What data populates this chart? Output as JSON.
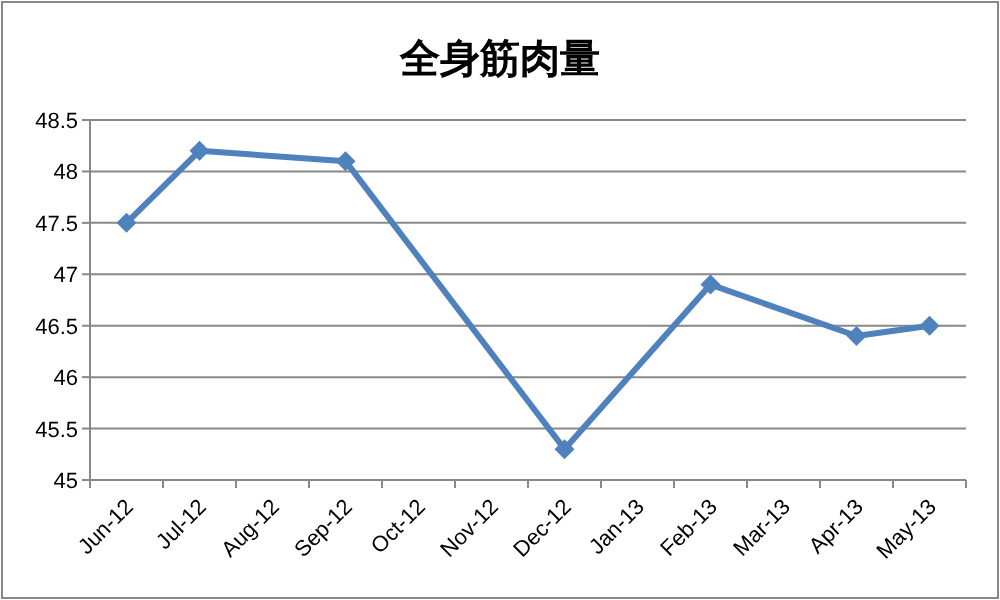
{
  "chart_data": {
    "type": "line",
    "title": "全身筋肉量",
    "categories": [
      "Jun-12",
      "Jul-12",
      "Aug-12",
      "Sep-12",
      "Oct-12",
      "Nov-12",
      "Dec-12",
      "Jan-13",
      "Feb-13",
      "Mar-13",
      "Apr-13",
      "May-13"
    ],
    "series": [
      {
        "color": "#4f81bd",
        "values": [
          47.5,
          48.2,
          null,
          48.1,
          null,
          null,
          45.3,
          null,
          46.9,
          null,
          46.4,
          46.5
        ]
      }
    ],
    "ylim": [
      45,
      48.5
    ],
    "yticks": [
      45,
      45.5,
      46,
      46.5,
      47,
      47.5,
      48,
      48.5
    ],
    "grid": "y",
    "marker": "diamond",
    "line_style": "solid"
  }
}
